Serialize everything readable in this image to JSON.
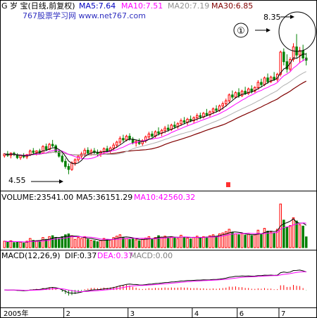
{
  "header": {
    "main_title": "G 岁  宝(日线,前复权)",
    "ma5": "MA5:7.64",
    "ma10": "MA10:7.51",
    "ma20": "MA20:7.19",
    "ma30": "MA30:6.85",
    "site": "767股票学习网  www.net767.com"
  },
  "volume_header": {
    "volume": "VOLUME:23541.00",
    "ma5": "MA5:36151.29",
    "ma10": "MA10:42560.32"
  },
  "macd_header": {
    "label": "MACD(12,26,9)",
    "dif": "DIF:0.37",
    "dea": "DEA:0.37",
    "macd": "MACD:0.00"
  },
  "annotations": {
    "low": "4.55",
    "high": "8.35",
    "marker": "①"
  },
  "x_labels": [
    "2005年",
    "2",
    "3",
    "4",
    "6",
    "7"
  ],
  "colors": {
    "up": "#ff0000",
    "down": "#008000",
    "ma5": "#000000",
    "ma10": "#ff00ff",
    "ma20": "#b0b0b0",
    "ma30": "#800000",
    "dif": "#000000",
    "dea": "#ff00ff",
    "header_ma5": "#0000c0",
    "header_ma10": "#ff00ff",
    "header_ma20": "#909090",
    "header_ma30": "#800000",
    "site": "#3030c0"
  },
  "chart_data": {
    "type": "candlestick",
    "price_range": [
      4.2,
      8.7
    ],
    "low_point": 4.55,
    "high_point": 8.35,
    "volume_max": 95000,
    "macd_range": [
      -0.3,
      0.55
    ],
    "candles": [
      [
        5.05,
        5.12,
        5.0,
        5.1,
        14000
      ],
      [
        5.1,
        5.18,
        5.02,
        5.06,
        12000
      ],
      [
        5.06,
        5.14,
        4.98,
        5.12,
        15000
      ],
      [
        5.12,
        5.16,
        5.04,
        5.08,
        11000
      ],
      [
        5.08,
        5.12,
        4.96,
        5.0,
        13000
      ],
      [
        5.0,
        5.08,
        4.94,
        5.06,
        12000
      ],
      [
        5.06,
        5.12,
        4.98,
        5.02,
        10000
      ],
      [
        5.02,
        5.1,
        4.96,
        5.08,
        14000
      ],
      [
        5.08,
        5.22,
        5.04,
        5.18,
        20000
      ],
      [
        5.18,
        5.26,
        5.1,
        5.14,
        16000
      ],
      [
        5.14,
        5.2,
        5.06,
        5.18,
        15000
      ],
      [
        5.18,
        5.24,
        5.1,
        5.12,
        13000
      ],
      [
        5.12,
        5.34,
        5.1,
        5.3,
        22000
      ],
      [
        5.3,
        5.38,
        5.18,
        5.22,
        18000
      ],
      [
        5.22,
        5.4,
        5.2,
        5.36,
        24000
      ],
      [
        5.36,
        5.48,
        5.28,
        5.32,
        26000
      ],
      [
        5.32,
        5.36,
        5.12,
        5.16,
        22000
      ],
      [
        5.16,
        5.2,
        5.0,
        5.04,
        20000
      ],
      [
        5.04,
        5.1,
        4.86,
        4.9,
        24000
      ],
      [
        4.9,
        4.98,
        4.7,
        4.76,
        28000
      ],
      [
        4.76,
        4.84,
        4.55,
        4.68,
        30000
      ],
      [
        4.68,
        4.9,
        4.64,
        4.86,
        26000
      ],
      [
        4.86,
        4.98,
        4.78,
        4.94,
        18000
      ],
      [
        4.94,
        5.08,
        4.88,
        5.04,
        22000
      ],
      [
        5.04,
        5.16,
        4.98,
        5.1,
        20000
      ],
      [
        5.1,
        5.26,
        5.04,
        5.2,
        24000
      ],
      [
        5.2,
        5.28,
        5.08,
        5.12,
        18000
      ],
      [
        5.12,
        5.24,
        5.06,
        5.18,
        16000
      ],
      [
        5.18,
        5.26,
        5.08,
        5.14,
        15000
      ],
      [
        5.14,
        5.22,
        5.04,
        5.1,
        13000
      ],
      [
        5.1,
        5.2,
        5.02,
        5.16,
        16000
      ],
      [
        5.16,
        5.28,
        5.1,
        5.24,
        20000
      ],
      [
        5.24,
        5.32,
        5.14,
        5.18,
        18000
      ],
      [
        5.18,
        5.3,
        5.12,
        5.26,
        17000
      ],
      [
        5.26,
        5.4,
        5.2,
        5.34,
        22000
      ],
      [
        5.34,
        5.46,
        5.26,
        5.42,
        25000
      ],
      [
        5.42,
        5.58,
        5.36,
        5.52,
        28000
      ],
      [
        5.52,
        5.62,
        5.42,
        5.48,
        22000
      ],
      [
        5.48,
        5.62,
        5.44,
        5.58,
        20000
      ],
      [
        5.58,
        5.66,
        5.46,
        5.5,
        18000
      ],
      [
        5.5,
        5.56,
        5.36,
        5.4,
        20000
      ],
      [
        5.4,
        5.48,
        5.3,
        5.44,
        17000
      ],
      [
        5.44,
        5.52,
        5.34,
        5.38,
        15000
      ],
      [
        5.38,
        5.5,
        5.32,
        5.46,
        18000
      ],
      [
        5.46,
        5.6,
        5.4,
        5.56,
        21000
      ],
      [
        5.56,
        5.7,
        5.5,
        5.64,
        24000
      ],
      [
        5.64,
        5.72,
        5.54,
        5.58,
        19000
      ],
      [
        5.58,
        5.74,
        5.54,
        5.7,
        22000
      ],
      [
        5.7,
        5.82,
        5.6,
        5.66,
        26000
      ],
      [
        5.66,
        5.78,
        5.58,
        5.74,
        23000
      ],
      [
        5.74,
        5.86,
        5.66,
        5.8,
        25000
      ],
      [
        5.8,
        5.9,
        5.7,
        5.76,
        21000
      ],
      [
        5.76,
        5.92,
        5.72,
        5.88,
        24000
      ],
      [
        5.88,
        5.98,
        5.78,
        5.84,
        22000
      ],
      [
        5.84,
        5.96,
        5.78,
        5.92,
        20000
      ],
      [
        5.92,
        6.06,
        5.86,
        6.0,
        27000
      ],
      [
        6.0,
        6.1,
        5.9,
        5.96,
        23000
      ],
      [
        5.96,
        6.08,
        5.88,
        6.04,
        21000
      ],
      [
        6.04,
        6.14,
        5.96,
        6.0,
        19000
      ],
      [
        6.0,
        6.12,
        5.94,
        6.08,
        22000
      ],
      [
        6.08,
        6.2,
        6.0,
        6.14,
        25000
      ],
      [
        6.14,
        6.22,
        6.04,
        6.1,
        21000
      ],
      [
        6.1,
        6.24,
        6.06,
        6.2,
        24000
      ],
      [
        6.2,
        6.32,
        6.12,
        6.16,
        23000
      ],
      [
        6.16,
        6.28,
        6.1,
        6.24,
        26000
      ],
      [
        6.24,
        6.36,
        6.18,
        6.32,
        28000
      ],
      [
        6.32,
        6.42,
        6.22,
        6.28,
        24000
      ],
      [
        6.28,
        6.44,
        6.24,
        6.4,
        30000
      ],
      [
        6.4,
        6.52,
        6.3,
        6.46,
        32000
      ],
      [
        6.46,
        6.6,
        6.38,
        6.54,
        35000
      ],
      [
        6.54,
        6.74,
        6.48,
        6.7,
        40000
      ],
      [
        6.7,
        6.82,
        6.58,
        6.64,
        33000
      ],
      [
        6.64,
        6.8,
        6.6,
        6.76,
        30000
      ],
      [
        6.76,
        6.88,
        6.62,
        6.68,
        28000
      ],
      [
        6.68,
        6.84,
        6.64,
        6.8,
        31000
      ],
      [
        6.8,
        6.92,
        6.7,
        6.74,
        27000
      ],
      [
        6.74,
        6.9,
        6.7,
        6.86,
        29000
      ],
      [
        6.86,
        6.96,
        6.74,
        6.8,
        26000
      ],
      [
        6.8,
        6.94,
        6.76,
        6.9,
        28000
      ],
      [
        6.9,
        7.1,
        6.84,
        7.04,
        38000
      ],
      [
        7.04,
        7.14,
        6.92,
        6.98,
        30000
      ],
      [
        6.98,
        7.2,
        6.94,
        7.16,
        42000
      ],
      [
        7.16,
        7.28,
        7.0,
        7.06,
        36000
      ],
      [
        7.06,
        7.22,
        7.02,
        7.18,
        34000
      ],
      [
        7.18,
        7.32,
        7.08,
        7.12,
        32000
      ],
      [
        7.12,
        7.3,
        7.06,
        7.26,
        40000
      ],
      [
        7.26,
        7.9,
        7.2,
        7.86,
        95000
      ],
      [
        7.86,
        7.96,
        7.5,
        7.6,
        60000
      ],
      [
        7.6,
        7.8,
        7.3,
        7.4,
        45000
      ],
      [
        7.4,
        7.72,
        7.34,
        7.66,
        48000
      ],
      [
        7.66,
        8.1,
        7.6,
        8.0,
        65000
      ],
      [
        8.0,
        8.35,
        7.7,
        7.78,
        58000
      ],
      [
        7.78,
        8.0,
        7.56,
        7.9,
        50000
      ],
      [
        7.9,
        8.06,
        7.62,
        7.7,
        47000
      ],
      [
        7.7,
        7.84,
        7.5,
        7.64,
        23541
      ]
    ]
  }
}
